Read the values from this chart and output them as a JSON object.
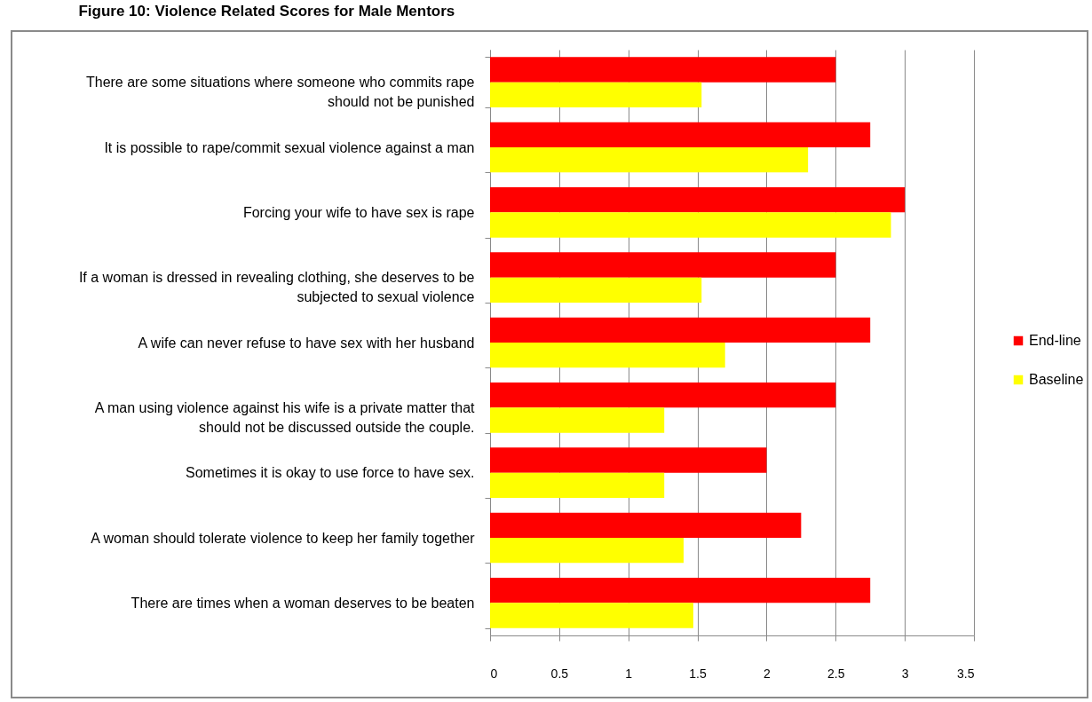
{
  "chart_data": {
    "type": "bar",
    "orientation": "horizontal",
    "title": "Figure 10: Violence Related Scores for Male Mentors",
    "categories": [
      "There are some situations where someone who commits rape should not be punished",
      "It is possible to rape/commit sexual violence against a man",
      "Forcing your wife to have sex is rape",
      "If a woman is dressed in revealing clothing, she deserves to be subjected to sexual violence",
      "A wife can never refuse to have sex with her husband",
      "A man using violence against his wife is a private matter that should not be discussed outside the couple.",
      "Sometimes it is okay to use force to have sex.",
      "A woman should tolerate violence to keep her family together",
      "There are times when a woman deserves to be beaten"
    ],
    "series": [
      {
        "name": "End-line",
        "color": "#ff0000",
        "values": [
          2.5,
          2.75,
          3,
          2.5,
          2.75,
          2.5,
          2,
          2.25,
          2.75
        ]
      },
      {
        "name": "Baseline",
        "color": "#ffff00",
        "values": [
          1.53,
          2.3,
          2.9,
          1.53,
          1.7,
          1.26,
          1.26,
          1.4,
          1.47
        ]
      }
    ],
    "xlim": [
      0,
      3.5
    ],
    "xticks": [
      0,
      0.5,
      1,
      1.5,
      2,
      2.5,
      3,
      3.5
    ],
    "grid": "x",
    "legend": "right"
  }
}
